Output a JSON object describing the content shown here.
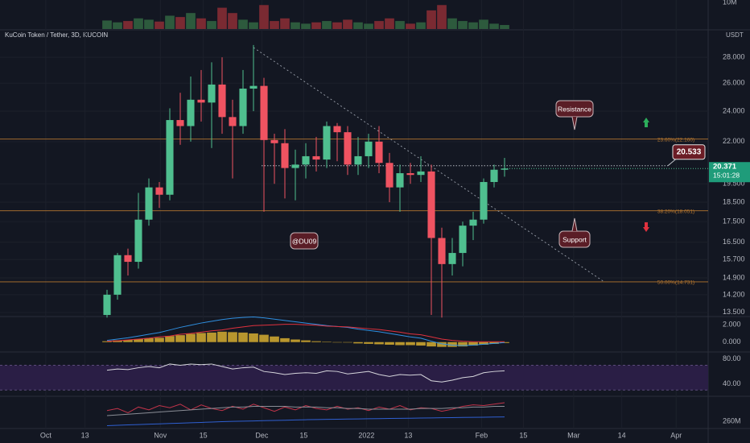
{
  "chart_data": {
    "type": "candlestick",
    "title": "KuCoin Token / Tether, 3D, KUCOIN",
    "y_unit": "USDT",
    "log_scale": true,
    "xlim": [
      -10.23,
      57.46
    ],
    "xticks": [
      {
        "value": -5.85,
        "label": "Oct"
      },
      {
        "value": -2.1,
        "label": "13"
      },
      {
        "value": 5.1,
        "label": "Nov"
      },
      {
        "value": 9.2,
        "label": "15"
      },
      {
        "value": 14.8,
        "label": "Dec"
      },
      {
        "value": 18.8,
        "label": "15"
      },
      {
        "value": 24.8,
        "label": "2022"
      },
      {
        "value": 28.8,
        "label": "13"
      },
      {
        "value": 35.8,
        "label": "Feb"
      },
      {
        "value": 39.8,
        "label": "15"
      },
      {
        "value": 44.6,
        "label": "Mar"
      },
      {
        "value": 49.2,
        "label": "14"
      },
      {
        "value": 54.4,
        "label": "Apr"
      }
    ],
    "ylim": [
      13.34,
      30.29
    ],
    "yticks": [
      {
        "value": 13.5,
        "label": "13.500"
      },
      {
        "value": 14.2,
        "label": "14.200"
      },
      {
        "value": 14.9,
        "label": "14.900"
      },
      {
        "value": 15.7,
        "label": "15.700"
      },
      {
        "value": 16.5,
        "label": "16.500"
      },
      {
        "value": 17.5,
        "label": "17.500"
      },
      {
        "value": 18.5,
        "label": "18.500"
      },
      {
        "value": 19.5,
        "label": "19.500"
      },
      {
        "value": 22,
        "label": "22.000"
      },
      {
        "value": 24,
        "label": "24.000"
      },
      {
        "value": 26,
        "label": "26.000"
      },
      {
        "value": 28,
        "label": "28.000"
      }
    ],
    "up_color": "#4fbf8f",
    "down_color": "#ef5361",
    "open": [
      13.4,
      14.2,
      15.9,
      15.6,
      17.6,
      19.3,
      18.9,
      23.4,
      23.0,
      24.8,
      24.6,
      25.9,
      23.6,
      23.0,
      25.6,
      25.8,
      22.1,
      21.9,
      20.4,
      20.6,
      21.1,
      20.9,
      23.0,
      22.6,
      20.6,
      21.1,
      22.0,
      20.7,
      19.3,
      20.1,
      20.0,
      20.2,
      16.7,
      15.5,
      16.0,
      17.3,
      17.6,
      19.6,
      20.3
    ],
    "high": [
      14.4,
      16.0,
      16.2,
      19.0,
      19.8,
      19.6,
      24.2,
      25.3,
      26.5,
      27.0,
      27.6,
      28.0,
      24.8,
      27.0,
      29.0,
      26.4,
      22.5,
      22.8,
      21.5,
      21.9,
      22.3,
      23.3,
      23.2,
      23.0,
      22.3,
      22.5,
      23.0,
      21.3,
      20.6,
      20.7,
      21.1,
      20.6,
      17.2,
      16.7,
      17.5,
      18.0,
      19.8,
      20.6,
      21.0
    ],
    "low": [
      13.3,
      14.0,
      15.0,
      15.3,
      17.3,
      18.2,
      18.6,
      21.8,
      22.0,
      23.3,
      21.6,
      22.5,
      19.8,
      22.5,
      24.0,
      18.0,
      19.5,
      18.7,
      18.6,
      19.8,
      20.2,
      20.4,
      20.8,
      20.0,
      20.0,
      20.4,
      20.1,
      18.5,
      18.0,
      19.5,
      19.6,
      13.4,
      13.3,
      15.0,
      15.4,
      16.6,
      17.4,
      19.3,
      19.9
    ],
    "close": [
      14.2,
      15.9,
      15.6,
      17.6,
      19.3,
      18.9,
      23.4,
      23.0,
      24.8,
      24.6,
      25.9,
      23.6,
      23.0,
      25.6,
      25.8,
      22.1,
      21.9,
      20.4,
      20.6,
      21.1,
      20.9,
      23.0,
      22.6,
      20.6,
      21.1,
      22.0,
      20.7,
      19.3,
      20.1,
      20.0,
      20.2,
      16.7,
      15.5,
      16.0,
      17.3,
      17.6,
      19.6,
      20.3,
      20.371
    ],
    "current_price": 20.371,
    "current_price_label": "20.371",
    "countdown": "15:01:28",
    "fib_levels": [
      {
        "value": 22.16,
        "label": "23.60%(22.160)"
      },
      {
        "value": 18.051,
        "label": "38.20%(18.051)"
      },
      {
        "value": 14.731,
        "label": "50.00%(14.731)"
      }
    ],
    "fib_color": "#b5762f",
    "trendline": {
      "x": [
        14,
        47.5
      ],
      "y": [
        28.79,
        14.74
      ]
    },
    "target": {
      "value": 20.533,
      "label": "20.533"
    },
    "annotations": {
      "resistance": "Resistance",
      "support": "Support",
      "author": "@DU09"
    },
    "volume": {
      "values": [
        3200000,
        2500000,
        3000000,
        4000000,
        3500000,
        2800000,
        5000000,
        4500000,
        6000000,
        4000000,
        3000000,
        8000000,
        6000000,
        3500000,
        2500000,
        9000000,
        3000000,
        4000000,
        2500000,
        2000000,
        2500000,
        3000000,
        2500000,
        3500000,
        2500000,
        2000000,
        3000000,
        4000000,
        3000000,
        2000000,
        2500000,
        7000000,
        9000000,
        4000000,
        3000000,
        2500000,
        3500000,
        2000000,
        1500000
      ],
      "ylim": [
        0,
        10900000
      ],
      "yticks": [
        {
          "value": 10000000,
          "label": "10M"
        }
      ]
    },
    "macd": {
      "histogram": [
        0.1,
        0.2,
        0.25,
        0.35,
        0.45,
        0.5,
        0.7,
        0.8,
        0.95,
        1.05,
        1.1,
        1.2,
        1.15,
        1.1,
        1.0,
        0.85,
        0.65,
        0.45,
        0.3,
        0.2,
        0.1,
        0.05,
        0,
        -0.05,
        -0.15,
        -0.2,
        -0.25,
        -0.3,
        -0.35,
        -0.35,
        -0.4,
        -0.5,
        -0.55,
        -0.55,
        -0.5,
        -0.4,
        -0.3,
        -0.2,
        -0.1
      ],
      "histogram_color": "#b8962e",
      "series": [
        {
          "color": "#2f8fe0",
          "values": [
            0.2,
            0.35,
            0.5,
            0.7,
            0.9,
            1.1,
            1.4,
            1.7,
            1.95,
            2.2,
            2.4,
            2.6,
            2.75,
            2.85,
            2.9,
            2.8,
            2.65,
            2.5,
            2.35,
            2.2,
            2.05,
            1.9,
            1.8,
            1.7,
            1.5,
            1.35,
            1.2,
            1.0,
            0.8,
            0.6,
            0.45,
            0.1,
            -0.2,
            -0.35,
            -0.4,
            -0.35,
            -0.25,
            -0.15,
            -0.05
          ]
        },
        {
          "color": "#e0313e",
          "values": [
            0.1,
            0.15,
            0.25,
            0.35,
            0.45,
            0.6,
            0.7,
            0.9,
            1.0,
            1.15,
            1.3,
            1.4,
            1.6,
            1.75,
            1.9,
            1.95,
            2.0,
            2.05,
            2.05,
            2.0,
            1.95,
            1.85,
            1.8,
            1.75,
            1.65,
            1.55,
            1.45,
            1.3,
            1.15,
            0.95,
            0.85,
            0.6,
            0.35,
            0.2,
            0.1,
            0.05,
            0.05,
            0.05,
            0.05
          ]
        }
      ],
      "ylim": [
        -1.14,
        2.95
      ],
      "yticks": [
        {
          "value": 2,
          "label": "2.000"
        },
        {
          "value": 0,
          "label": "0.000"
        }
      ]
    },
    "rsi": {
      "values": [
        62,
        64,
        63,
        66,
        68,
        66,
        72,
        70,
        72,
        71,
        72,
        68,
        64,
        66,
        67,
        60,
        58,
        55,
        57,
        58,
        57,
        61,
        60,
        56,
        58,
        60,
        55,
        52,
        55,
        54,
        55,
        45,
        43,
        46,
        50,
        52,
        58,
        60,
        61
      ],
      "color": "#d6d6dc",
      "band": [
        30,
        70
      ],
      "band_color": "#2a1e45",
      "ylim": [
        20,
        91.4
      ],
      "yticks": [
        {
          "value": 80,
          "label": "80.00"
        },
        {
          "value": 40,
          "label": "40.00"
        }
      ]
    },
    "lower": {
      "series": [
        {
          "color": "#c2344a",
          "values": [
            275,
            278,
            272,
            280,
            276,
            282,
            279,
            284,
            276,
            283,
            278,
            275,
            281,
            277,
            284,
            279,
            274,
            280,
            276,
            282,
            278,
            276,
            281,
            277,
            279,
            275,
            280,
            277,
            282,
            276,
            279,
            278,
            274,
            277,
            281,
            283,
            282,
            284,
            286
          ]
        },
        {
          "color": "#8a8d96",
          "values": [
            268,
            269,
            270,
            271,
            272,
            273,
            274,
            275,
            276,
            277,
            278,
            279,
            280,
            280,
            281,
            281,
            281,
            281,
            280,
            280,
            280,
            279,
            279,
            278,
            278,
            277,
            277,
            277,
            277,
            277,
            278,
            278,
            278,
            279,
            279,
            280,
            280,
            281,
            281
          ]
        },
        {
          "color": "#2f5fd0",
          "values": [
            254,
            254.5,
            255,
            255.5,
            256,
            256.5,
            257,
            257.5,
            258,
            258.5,
            259,
            259.5,
            260,
            260.3,
            260.6,
            261,
            261.3,
            261.6,
            262,
            262.3,
            262.5,
            262.8,
            263,
            263.2,
            263.4,
            263.6,
            263.8,
            264,
            264.2,
            264.4,
            264.6,
            264.8,
            265,
            265.2,
            265.4,
            265.6,
            265.8,
            266,
            266.2
          ]
        }
      ],
      "ylim": [
        250,
        295
      ],
      "yticks": [
        {
          "value": 260,
          "label": "260M"
        }
      ]
    }
  }
}
